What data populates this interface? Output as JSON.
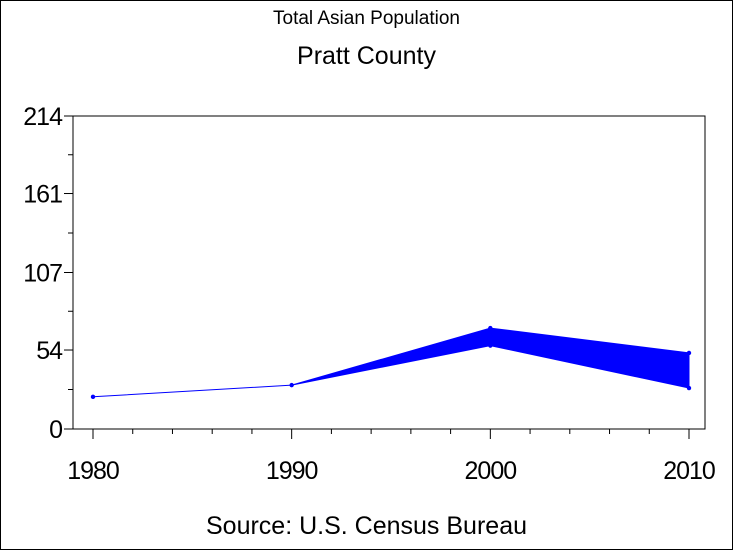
{
  "title": "Total Asian Population",
  "subtitle": "Pratt County",
  "source": "Source: U.S. Census Bureau",
  "colors": {
    "series": "#0000ff",
    "axis": "#000000",
    "background": "#ffffff"
  },
  "chart_data": {
    "type": "area",
    "title": "Total Asian Population",
    "subtitle": "Pratt County",
    "xlabel": "",
    "ylabel": "",
    "x": [
      1980,
      1990,
      2000,
      2010
    ],
    "x_tick_labels": [
      "1980",
      "1990",
      "2000",
      "2010"
    ],
    "xlim": [
      1980,
      2010
    ],
    "ylim": [
      0,
      214
    ],
    "y_ticks": [
      0,
      54,
      107,
      161,
      214
    ],
    "y_tick_labels": [
      "0",
      "54",
      "107",
      "161",
      "214"
    ],
    "series": [
      {
        "values_low": [
          22,
          30,
          57,
          28
        ],
        "values_high": [
          22,
          30,
          69,
          52
        ]
      }
    ],
    "grid": false,
    "legend": "none"
  }
}
